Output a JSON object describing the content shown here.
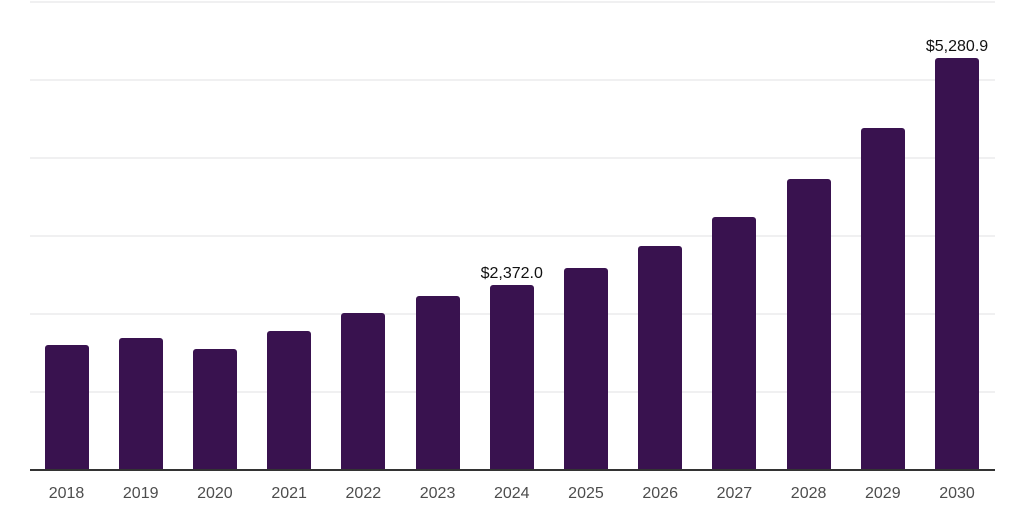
{
  "chart": {
    "background_color": "#FFFFFF",
    "bar_color": "#39124F",
    "gridline_color": "#F0F0F1",
    "axis_line_color": "#333333",
    "tick_label_color": "#4D4D4D",
    "data_label_color": "#111111"
  },
  "chart_data": {
    "type": "bar",
    "title": "",
    "xlabel": "",
    "ylabel": "",
    "categories": [
      "2018",
      "2019",
      "2020",
      "2021",
      "2022",
      "2023",
      "2024",
      "2025",
      "2026",
      "2027",
      "2028",
      "2029",
      "2030"
    ],
    "values": [
      1597,
      1691,
      1546,
      1785,
      2015,
      2225,
      2372.0,
      2590,
      2870,
      3245,
      3735,
      4390,
      5280.9
    ],
    "data_labels": [
      "",
      "",
      "",
      "",
      "",
      "",
      "$2,372.0",
      "",
      "",
      "",
      "",
      "",
      "$5,280.9"
    ],
    "ylim": [
      0,
      6000
    ],
    "gridline_values": [
      1000,
      2000,
      3000,
      4000,
      5000,
      6000
    ],
    "grid": true,
    "legend": false,
    "y_axis_tick_labels_visible": false
  }
}
